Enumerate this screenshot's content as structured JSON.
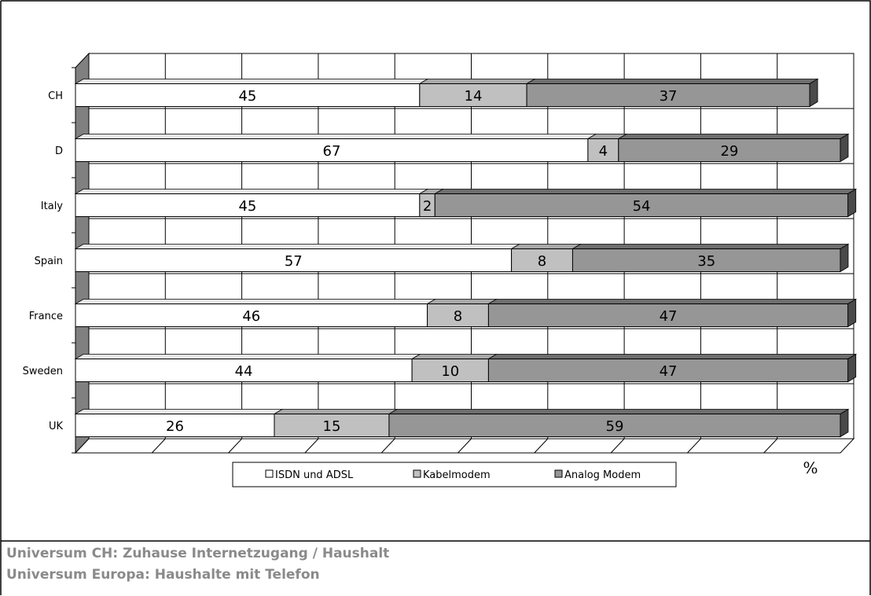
{
  "chart_data": {
    "type": "bar",
    "orientation": "horizontal",
    "stacked": true,
    "three_d": true,
    "categories": [
      "CH",
      "D",
      "Italy",
      "Spain",
      "France",
      "Sweden",
      "UK"
    ],
    "series": [
      {
        "name": "ISDN und ADSL",
        "values": [
          45,
          67,
          45,
          57,
          46,
          44,
          26
        ]
      },
      {
        "name": "Kabelmodem",
        "values": [
          14,
          4,
          2,
          8,
          8,
          10,
          15
        ]
      },
      {
        "name": "Analog Modem",
        "values": [
          37,
          29,
          54,
          35,
          47,
          47,
          59
        ]
      }
    ],
    "xlabel": "%",
    "xlim": [
      0,
      100
    ],
    "grid": true,
    "legend_position": "bottom",
    "colors": {
      "ISDN und ADSL": "#ffffff",
      "Kabelmodem": "#c0c0c0",
      "Analog Modem": "#969696",
      "wall": "#808080"
    }
  },
  "captions": {
    "line1": "Universum CH: Zuhause Internetzugang / Haushalt",
    "line2": "Universum Europa: Haushalte mit Telefon"
  }
}
